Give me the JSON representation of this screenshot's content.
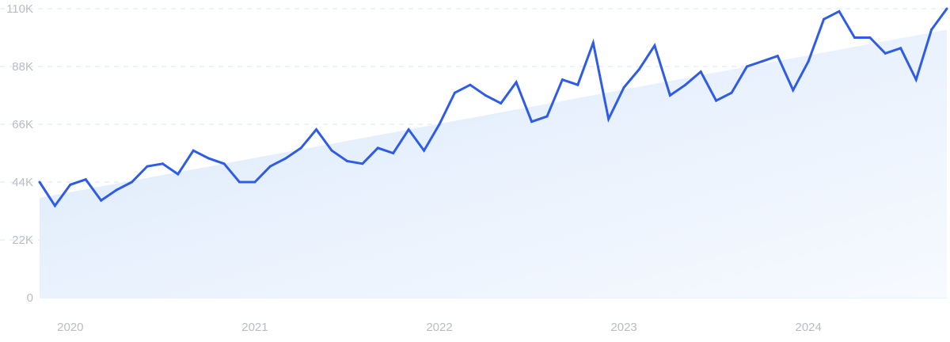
{
  "chart_data": {
    "type": "line",
    "title": "",
    "xlabel": "",
    "ylabel": "",
    "ylim": [
      0,
      110000
    ],
    "yticks": [
      0,
      22000,
      44000,
      66000,
      88000,
      110000
    ],
    "ytick_labels": [
      "0",
      "22K",
      "44K",
      "66K",
      "88K",
      "110K"
    ],
    "xtick_labels": [
      {
        "label": "2020",
        "date": "2020-01"
      },
      {
        "label": "2021",
        "date": "2021-01"
      },
      {
        "label": "2022",
        "date": "2022-01"
      },
      {
        "label": "2023",
        "date": "2023-01"
      },
      {
        "label": "2024",
        "date": "2024-01"
      }
    ],
    "grid": true,
    "line_color": "#2e5ce6",
    "trend_fill_color": "#dbe9fb",
    "x": [
      "2019-11",
      "2019-12",
      "2020-01",
      "2020-02",
      "2020-03",
      "2020-04",
      "2020-05",
      "2020-06",
      "2020-07",
      "2020-08",
      "2020-09",
      "2020-10",
      "2020-11",
      "2020-12",
      "2021-01",
      "2021-02",
      "2021-03",
      "2021-04",
      "2021-05",
      "2021-06",
      "2021-07",
      "2021-08",
      "2021-09",
      "2021-10",
      "2021-11",
      "2021-12",
      "2022-01",
      "2022-02",
      "2022-03",
      "2022-04",
      "2022-05",
      "2022-06",
      "2022-07",
      "2022-08",
      "2022-09",
      "2022-10",
      "2022-11",
      "2022-12",
      "2023-01",
      "2023-02",
      "2023-03",
      "2023-04",
      "2023-05",
      "2023-06",
      "2023-07",
      "2023-08",
      "2023-09",
      "2023-10",
      "2023-11",
      "2023-12",
      "2024-01",
      "2024-02",
      "2024-03",
      "2024-04",
      "2024-05",
      "2024-06",
      "2024-07",
      "2024-08",
      "2024-09",
      "2024-10"
    ],
    "series": [
      {
        "values": [
          44000,
          35000,
          43000,
          45000,
          37000,
          41000,
          44000,
          50000,
          51000,
          47000,
          56000,
          53000,
          51000,
          44000,
          44000,
          50000,
          53000,
          57000,
          64000,
          56000,
          52000,
          51000,
          57000,
          55000,
          64000,
          56000,
          66000,
          78000,
          81000,
          77000,
          74000,
          82000,
          67000,
          69000,
          83000,
          81000,
          97000,
          68000,
          80000,
          87000,
          96000,
          77000,
          81000,
          86000,
          75000,
          78000,
          88000,
          90000,
          92000,
          79000,
          90000,
          106000,
          109000,
          99000,
          99000,
          93000,
          95000,
          83000,
          102000,
          110000
        ]
      }
    ],
    "trend": {
      "start": 38000,
      "end": 102000
    }
  }
}
